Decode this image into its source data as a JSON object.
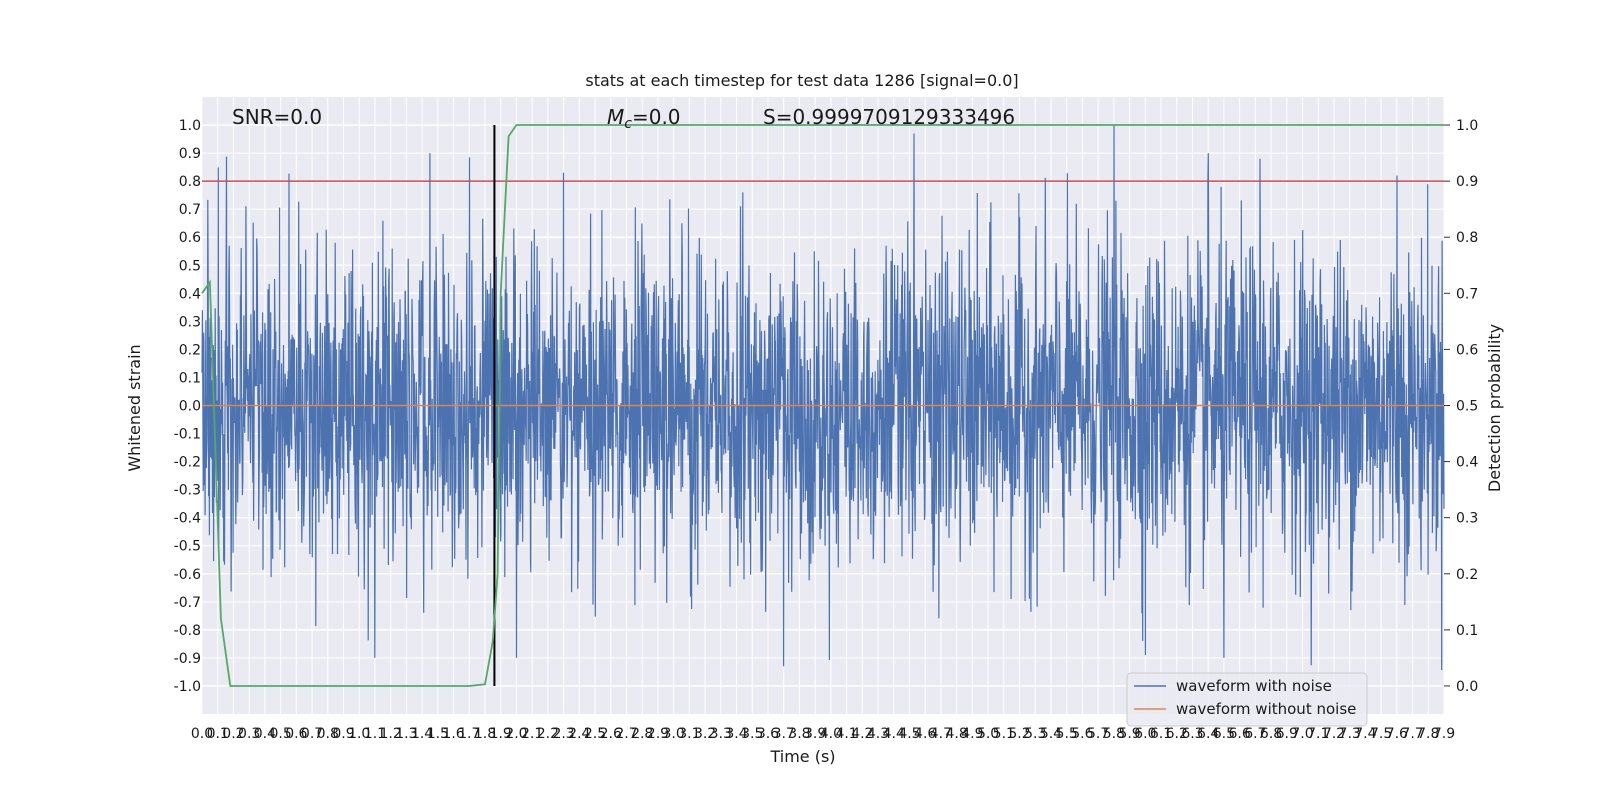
{
  "chart_data": {
    "type": "line",
    "title": "stats at each timestep for test data 1286 [signal=0.0]",
    "xlabel": "Time (s)",
    "ylabel": "Whitened strain",
    "y2label": "Detection probability",
    "xlim": [
      0.0,
      7.9
    ],
    "ylim": [
      -1.1,
      1.1
    ],
    "y2lim": [
      -0.05,
      1.05
    ],
    "x_tick_step": 0.1,
    "y_ticks": [
      -1.0,
      -0.9,
      -0.8,
      -0.7,
      -0.6,
      -0.5,
      -0.4,
      -0.3,
      -0.2,
      -0.1,
      0.0,
      0.1,
      0.2,
      0.3,
      0.4,
      0.5,
      0.6,
      0.7,
      0.8,
      0.9,
      1.0
    ],
    "y2_ticks": [
      0.0,
      0.1,
      0.2,
      0.3,
      0.4,
      0.5,
      0.6,
      0.7,
      0.8,
      0.9,
      1.0
    ],
    "grid": true,
    "legend_position": "lower-right",
    "annotations": {
      "snr": "SNR=0.0",
      "mc_symbol": "M",
      "mc_sub": "c",
      "mc_value": "=0.0",
      "s": "S=0.9999709129333496"
    },
    "series": [
      {
        "name": "waveform with noise",
        "color": "#4c72b0",
        "axis": "left",
        "style": "dense noise between about -1.0 and 1.0",
        "amplitude": 0.45,
        "peaks": [
          {
            "x": 1.45,
            "y": 0.9
          },
          {
            "x": 2.3,
            "y": 0.83
          },
          {
            "x": 4.53,
            "y": 0.97
          },
          {
            "x": 5.8,
            "y": 1.0
          },
          {
            "x": 6.4,
            "y": 0.9
          },
          {
            "x": 6.73,
            "y": 0.88
          },
          {
            "x": 7.6,
            "y": 0.82
          },
          {
            "x": 1.1,
            "y": -0.9
          },
          {
            "x": 2.0,
            "y": -0.9
          },
          {
            "x": 3.7,
            "y": -0.93
          },
          {
            "x": 6.0,
            "y": -0.89
          },
          {
            "x": 6.5,
            "y": -0.9
          }
        ]
      },
      {
        "name": "waveform without noise",
        "color": "#dd8452",
        "axis": "left",
        "x": [
          0.0,
          7.9
        ],
        "y": [
          0.0,
          0.0
        ]
      },
      {
        "name": "Detection probability",
        "color": "#55a868",
        "axis": "right",
        "x": [
          0.0,
          0.05,
          0.12,
          0.18,
          1.7,
          1.8,
          1.85,
          1.88,
          1.9,
          1.95,
          2.0,
          7.9
        ],
        "y": [
          0.7,
          0.72,
          0.12,
          0.0,
          0.0,
          0.003,
          0.08,
          0.2,
          0.7,
          0.98,
          1.0,
          1.0
        ]
      }
    ],
    "thresholds": [
      {
        "color": "#c44e52",
        "axis": "right",
        "value": 0.9
      },
      {
        "color": "#000000",
        "axis": "x",
        "value": 1.86
      }
    ]
  }
}
